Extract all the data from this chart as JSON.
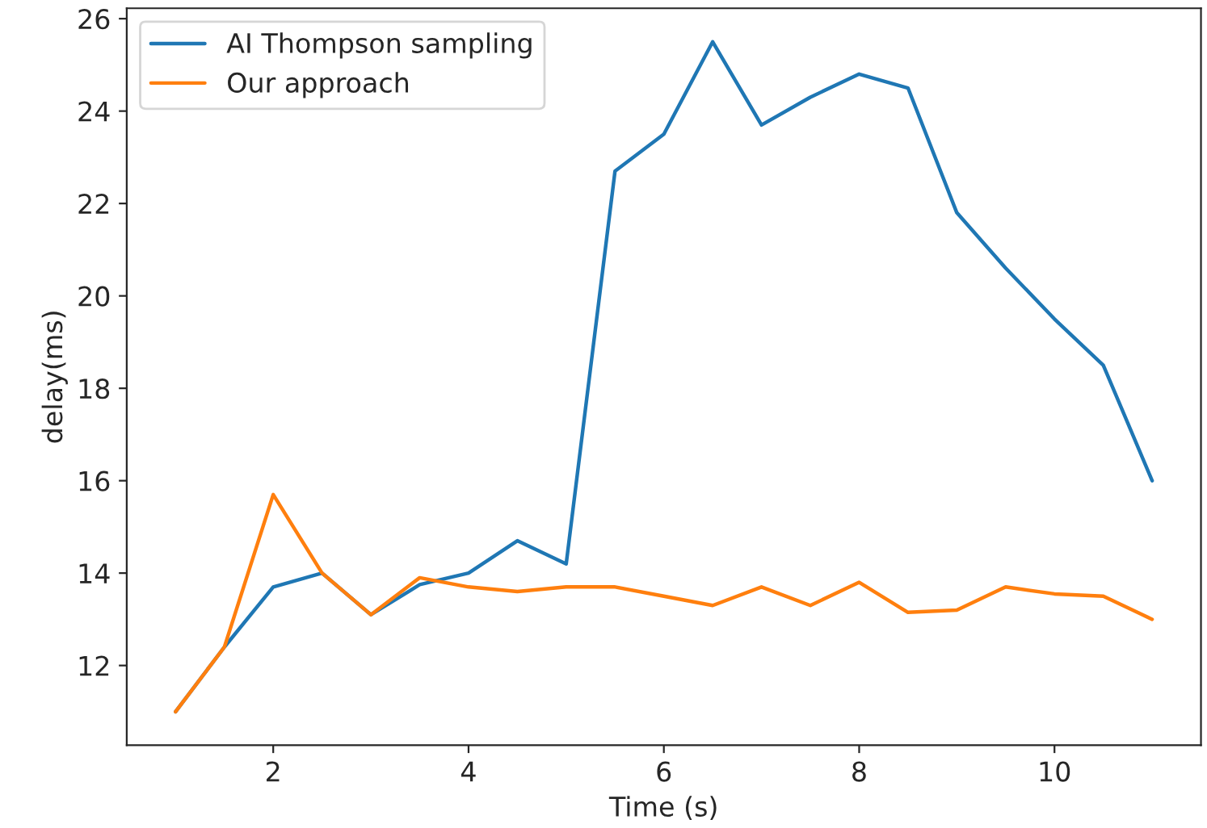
{
  "chart_data": {
    "type": "line",
    "xlabel": "Time (s)",
    "ylabel": "delay(ms)",
    "x": [
      1,
      1.5,
      2,
      2.5,
      3,
      3.5,
      4,
      4.5,
      5,
      5.5,
      6,
      6.5,
      7,
      7.5,
      8,
      8.5,
      9,
      9.5,
      10,
      10.5,
      11
    ],
    "series": [
      {
        "name": "AI Thompson sampling",
        "color": "#1f77b4",
        "values": [
          11.0,
          12.4,
          13.7,
          14.0,
          13.1,
          13.75,
          14.0,
          14.7,
          14.2,
          22.7,
          23.5,
          25.5,
          23.7,
          24.3,
          24.8,
          24.5,
          21.8,
          20.6,
          19.5,
          18.5,
          16.0
        ]
      },
      {
        "name": "Our approach",
        "color": "#ff7f0e",
        "values": [
          11.0,
          12.4,
          15.7,
          14.0,
          13.1,
          13.9,
          13.7,
          13.6,
          13.7,
          13.7,
          13.5,
          13.3,
          13.7,
          13.3,
          13.8,
          13.15,
          13.2,
          13.7,
          13.55,
          13.5,
          13.0
        ]
      }
    ],
    "xlim": [
      0.5,
      11.5
    ],
    "ylim": [
      10.275,
      26.225
    ],
    "xticks": [
      2,
      4,
      6,
      8,
      10
    ],
    "yticks": [
      12,
      14,
      16,
      18,
      20,
      22,
      24,
      26
    ],
    "legend": "top left",
    "grid": false,
    "marker": "none",
    "line_style": "solid"
  }
}
